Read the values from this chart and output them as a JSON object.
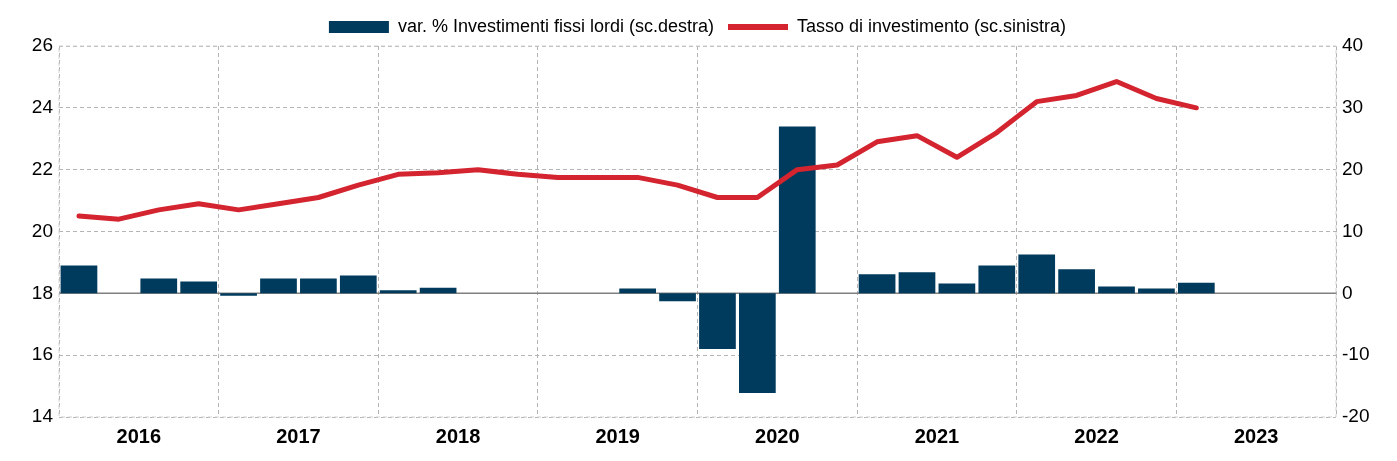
{
  "chart_data": {
    "type": "bar",
    "x": [
      2016.125,
      2016.375,
      2016.625,
      2016.875,
      2017.125,
      2017.375,
      2017.625,
      2017.875,
      2018.125,
      2018.375,
      2018.625,
      2018.875,
      2019.125,
      2019.375,
      2019.625,
      2019.875,
      2020.125,
      2020.375,
      2020.625,
      2020.875,
      2021.125,
      2021.375,
      2021.625,
      2021.875,
      2022.125,
      2022.375,
      2022.625,
      2022.875,
      2023.125
    ],
    "series": [
      {
        "name": "var. % Investimenti fissi lordi (sc.destra)",
        "axis": "y2",
        "color": "#003a5d",
        "values": [
          4.5,
          0,
          2.4,
          1.9,
          -0.4,
          2.4,
          2.4,
          2.9,
          0.5,
          0.9,
          0,
          0,
          0,
          0,
          0.8,
          -1.3,
          -9,
          -16.1,
          27,
          0,
          3.1,
          3.4,
          1.6,
          4.5,
          6.3,
          3.9,
          1.1,
          0.8,
          1.7
        ]
      },
      {
        "name": "Tasso di investimento (sc.sinistra)",
        "type": "line",
        "axis": "y",
        "color": "#d3242f",
        "values": [
          20.5,
          20.4,
          20.7,
          20.9,
          20.7,
          20.9,
          21.1,
          21.5,
          21.85,
          21.9,
          22,
          21.85,
          21.75,
          21.75,
          21.75,
          21.5,
          21.1,
          21.1,
          22,
          22.15,
          22.9,
          23.1,
          22.4,
          23.2,
          24.2,
          24.4,
          24.85,
          24.3,
          24
        ]
      }
    ],
    "xlim": [
      2016,
      2024
    ],
    "xticks": [
      {
        "value": 2016,
        "label": null
      },
      {
        "value": 2016.5,
        "label": "2016"
      },
      {
        "value": 2017,
        "label": null
      },
      {
        "value": 2017.5,
        "label": "2017"
      },
      {
        "value": 2018,
        "label": null
      },
      {
        "value": 2018.5,
        "label": "2018"
      },
      {
        "value": 2019,
        "label": null
      },
      {
        "value": 2019.5,
        "label": "2019"
      },
      {
        "value": 2020,
        "label": null
      },
      {
        "value": 2020.5,
        "label": "2020"
      },
      {
        "value": 2021,
        "label": null
      },
      {
        "value": 2021.5,
        "label": "2021"
      },
      {
        "value": 2022,
        "label": null
      },
      {
        "value": 2022.5,
        "label": "2022"
      },
      {
        "value": 2023,
        "label": null
      },
      {
        "value": 2023.5,
        "label": "2023"
      },
      {
        "value": 2024,
        "label": null
      }
    ],
    "ylim": [
      14,
      26
    ],
    "yticks": [
      14,
      16,
      18,
      20,
      22,
      24,
      26
    ],
    "y2lim": [
      -20,
      40
    ],
    "y2ticks": [
      -20,
      -10,
      0,
      10,
      20,
      30,
      40
    ],
    "grid": true,
    "legend": "top",
    "marker": "none",
    "line_style": "solid"
  }
}
